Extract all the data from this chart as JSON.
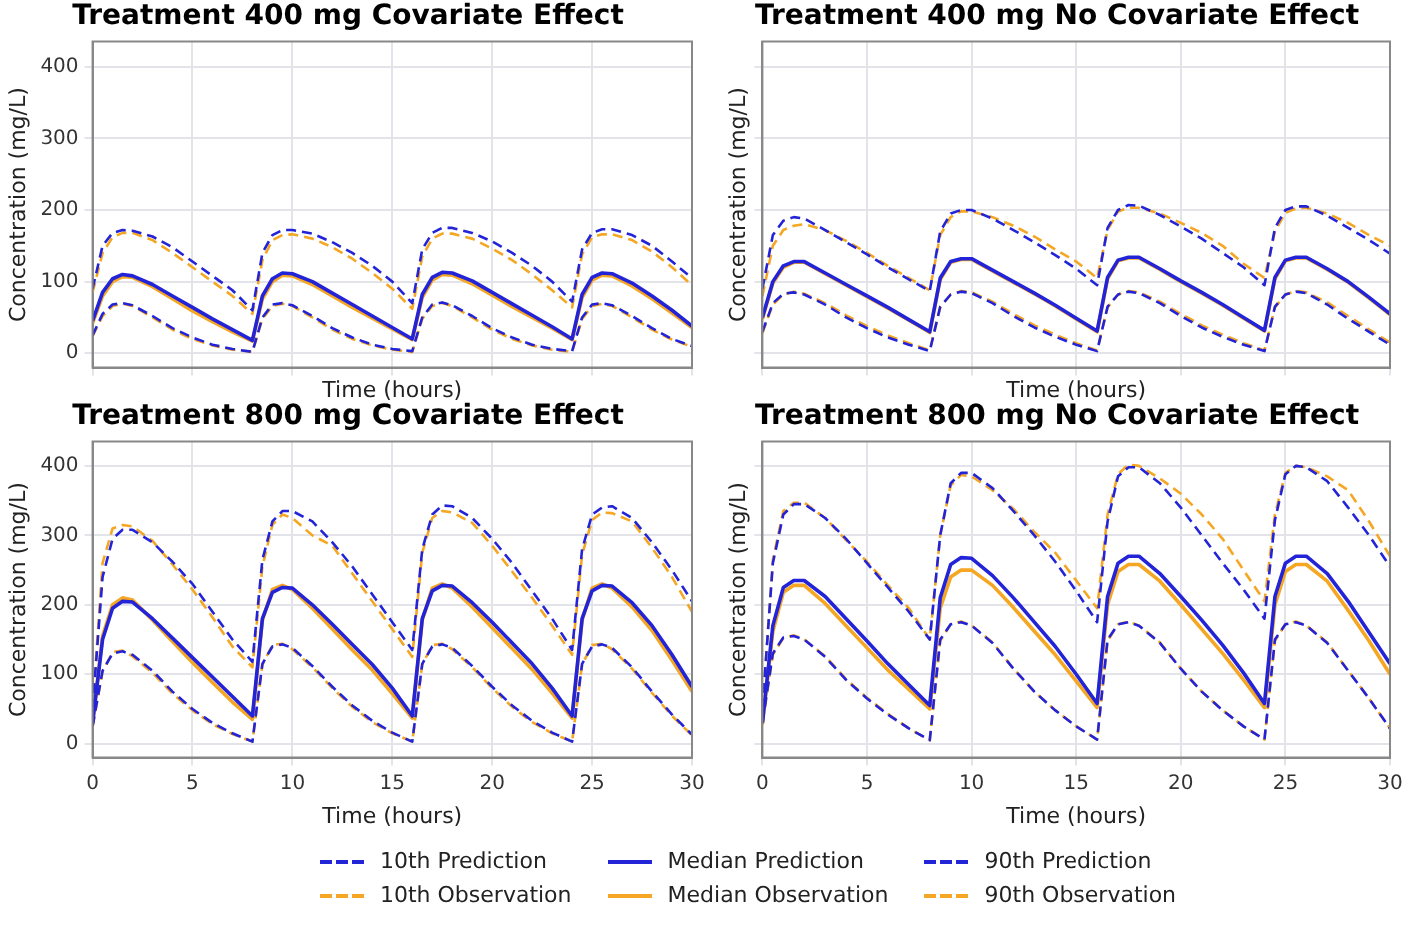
{
  "chart_data": [
    {
      "type": "line",
      "title": "Treatment 400 mg Covariate Effect",
      "xlabel": "Time (hours)",
      "ylabel": "Concentration (mg/L)",
      "xlim": [
        0,
        30
      ],
      "xticks": [
        0,
        5,
        10,
        15,
        20,
        25,
        30
      ],
      "ylim": [
        -20,
        435
      ],
      "yticks": [
        0,
        100,
        200,
        300,
        400
      ],
      "grid": true,
      "tick_labels": "y",
      "marker": "none",
      "legend": "bottom",
      "x": [
        0,
        0.5,
        1,
        1.5,
        2,
        3,
        4,
        5,
        6,
        7,
        8,
        8.5,
        9,
        9.5,
        10,
        11,
        12,
        13,
        14,
        15,
        16,
        16.5,
        17,
        17.5,
        18,
        19,
        20,
        21,
        22,
        23,
        24,
        24.5,
        25,
        25.5,
        26,
        27,
        28,
        29,
        30
      ],
      "series": [
        {
          "name": "10th Prediction",
          "color": "#2323d8",
          "line_style": "dashed",
          "values": [
            25,
            55,
            68,
            70,
            67,
            52,
            35,
            22,
            12,
            6,
            2,
            50,
            68,
            70,
            67,
            52,
            35,
            22,
            12,
            6,
            3,
            50,
            68,
            71,
            67,
            52,
            35,
            22,
            12,
            6,
            3,
            50,
            68,
            70,
            67,
            52,
            35,
            20,
            10
          ]
        },
        {
          "name": "Median Prediction",
          "color": "#2323d8",
          "line_style": "solid",
          "values": [
            45,
            85,
            104,
            110,
            108,
            96,
            80,
            64,
            48,
            33,
            18,
            80,
            104,
            112,
            111,
            100,
            84,
            68,
            52,
            36,
            20,
            82,
            106,
            113,
            112,
            101,
            85,
            69,
            53,
            37,
            20,
            82,
            106,
            112,
            111,
            98,
            80,
            60,
            38
          ]
        },
        {
          "name": "90th Prediction",
          "color": "#2323d8",
          "line_style": "dashed",
          "values": [
            90,
            150,
            168,
            172,
            171,
            163,
            148,
            128,
            108,
            88,
            60,
            140,
            165,
            172,
            172,
            167,
            155,
            140,
            122,
            100,
            70,
            145,
            168,
            175,
            175,
            168,
            156,
            140,
            122,
            100,
            72,
            145,
            168,
            173,
            173,
            165,
            150,
            128,
            105
          ]
        },
        {
          "name": "10th Observation",
          "color": "#f5a623",
          "line_style": "dashed",
          "values": [
            24,
            52,
            66,
            69,
            66,
            50,
            33,
            20,
            11,
            5,
            2,
            48,
            66,
            69,
            66,
            50,
            33,
            20,
            11,
            5,
            2,
            48,
            66,
            70,
            66,
            50,
            33,
            20,
            11,
            5,
            2,
            48,
            66,
            69,
            66,
            50,
            33,
            19,
            9
          ]
        },
        {
          "name": "Median Observation",
          "color": "#f5a623",
          "line_style": "solid",
          "values": [
            42,
            80,
            100,
            107,
            106,
            93,
            76,
            59,
            44,
            30,
            17,
            76,
            100,
            109,
            108,
            96,
            80,
            64,
            49,
            34,
            19,
            78,
            102,
            110,
            109,
            97,
            81,
            65,
            50,
            35,
            19,
            78,
            102,
            109,
            108,
            94,
            76,
            56,
            36
          ]
        },
        {
          "name": "90th Observation",
          "color": "#f5a623",
          "line_style": "dashed",
          "values": [
            85,
            140,
            162,
            168,
            168,
            158,
            140,
            120,
            100,
            80,
            55,
            130,
            158,
            165,
            166,
            160,
            148,
            132,
            112,
            90,
            62,
            135,
            160,
            167,
            167,
            160,
            146,
            130,
            110,
            88,
            64,
            138,
            162,
            166,
            166,
            158,
            142,
            120,
            95
          ]
        }
      ]
    },
    {
      "type": "line",
      "title": "Treatment 400 mg No Covariate Effect",
      "xlabel": "Time (hours)",
      "ylabel": "Concentration (mg/L)",
      "xlim": [
        0,
        30
      ],
      "xticks": [
        0,
        5,
        10,
        15,
        20,
        25,
        30
      ],
      "ylim": [
        -20,
        435
      ],
      "yticks": [
        0,
        100,
        200,
        300,
        400
      ],
      "grid": true,
      "tick_labels": false,
      "marker": "none",
      "x": [
        0,
        0.5,
        1,
        1.5,
        2,
        3,
        4,
        5,
        6,
        7,
        8,
        8.5,
        9,
        9.5,
        10,
        11,
        12,
        13,
        14,
        15,
        16,
        16.5,
        17,
        17.5,
        18,
        19,
        20,
        21,
        22,
        23,
        24,
        24.5,
        25,
        25.5,
        26,
        27,
        28,
        29,
        30
      ],
      "series": [
        {
          "name": "10th Prediction",
          "color": "#2323d8",
          "line_style": "dashed",
          "values": [
            30,
            70,
            83,
            85,
            82,
            68,
            50,
            35,
            22,
            12,
            3,
            65,
            82,
            86,
            84,
            70,
            52,
            36,
            23,
            12,
            3,
            65,
            82,
            86,
            84,
            70,
            52,
            36,
            23,
            12,
            3,
            65,
            82,
            86,
            84,
            68,
            48,
            30,
            12
          ]
        },
        {
          "name": "Median Prediction",
          "color": "#2323d8",
          "line_style": "solid",
          "values": [
            50,
            100,
            122,
            128,
            128,
            112,
            96,
            80,
            64,
            47,
            30,
            105,
            128,
            132,
            132,
            116,
            100,
            84,
            67,
            49,
            31,
            106,
            130,
            134,
            134,
            118,
            101,
            85,
            68,
            50,
            32,
            106,
            130,
            134,
            134,
            118,
            100,
            78,
            55
          ]
        },
        {
          "name": "90th Prediction",
          "color": "#2323d8",
          "line_style": "dashed",
          "values": [
            90,
            165,
            185,
            190,
            188,
            172,
            155,
            138,
            120,
            103,
            87,
            170,
            195,
            200,
            200,
            188,
            172,
            155,
            137,
            118,
            95,
            175,
            200,
            207,
            206,
            193,
            177,
            160,
            140,
            120,
            95,
            175,
            200,
            205,
            205,
            192,
            175,
            158,
            139
          ]
        },
        {
          "name": "10th Observation",
          "color": "#f5a623",
          "line_style": "dashed",
          "values": [
            28,
            68,
            82,
            86,
            83,
            70,
            53,
            38,
            25,
            14,
            4,
            64,
            82,
            87,
            85,
            72,
            55,
            39,
            26,
            14,
            4,
            64,
            82,
            87,
            85,
            72,
            55,
            39,
            26,
            14,
            4,
            64,
            82,
            87,
            85,
            71,
            52,
            33,
            15
          ]
        },
        {
          "name": "Median Observation",
          "color": "#f5a623",
          "line_style": "solid",
          "values": [
            48,
            98,
            120,
            127,
            127,
            111,
            95,
            79,
            63,
            46,
            29,
            103,
            127,
            131,
            131,
            115,
            99,
            83,
            66,
            48,
            30,
            104,
            129,
            133,
            133,
            117,
            100,
            84,
            67,
            49,
            31,
            104,
            129,
            133,
            133,
            117,
            99,
            77,
            54
          ]
        },
        {
          "name": "90th Observation",
          "color": "#f5a623",
          "line_style": "dashed",
          "values": [
            80,
            150,
            172,
            178,
            180,
            172,
            157,
            140,
            122,
            105,
            88,
            165,
            190,
            198,
            198,
            190,
            178,
            163,
            145,
            128,
            105,
            172,
            198,
            203,
            203,
            195,
            182,
            168,
            150,
            125,
            105,
            170,
            196,
            202,
            203,
            195,
            182,
            165,
            150
          ]
        }
      ]
    },
    {
      "type": "line",
      "title": "Treatment 800 mg Covariate Effect",
      "xlabel": "Time (hours)",
      "ylabel": "Concentration (mg/L)",
      "xlim": [
        0,
        30
      ],
      "xticks": [
        0,
        5,
        10,
        15,
        20,
        25,
        30
      ],
      "ylim": [
        -20,
        435
      ],
      "yticks": [
        0,
        100,
        200,
        300,
        400
      ],
      "grid": true,
      "marker": "none",
      "x": [
        0,
        0.5,
        1,
        1.5,
        2,
        3,
        4,
        5,
        6,
        7,
        8,
        8.5,
        9,
        9.5,
        10,
        11,
        12,
        13,
        14,
        15,
        16,
        16.5,
        17,
        17.5,
        18,
        19,
        20,
        21,
        22,
        23,
        24,
        24.5,
        25,
        25.5,
        26,
        27,
        28,
        29,
        30
      ],
      "series": [
        {
          "name": "10th Prediction",
          "color": "#2323d8",
          "line_style": "dashed",
          "values": [
            25,
            105,
            130,
            133,
            128,
            105,
            75,
            50,
            30,
            15,
            3,
            115,
            140,
            143,
            138,
            112,
            82,
            55,
            33,
            16,
            3,
            115,
            140,
            143,
            138,
            112,
            82,
            55,
            33,
            16,
            3,
            115,
            140,
            143,
            138,
            110,
            75,
            42,
            13
          ]
        },
        {
          "name": "Median Prediction",
          "color": "#2323d8",
          "line_style": "solid",
          "values": [
            30,
            150,
            195,
            205,
            204,
            180,
            152,
            124,
            96,
            68,
            40,
            180,
            218,
            225,
            224,
            200,
            172,
            143,
            114,
            80,
            40,
            180,
            220,
            228,
            227,
            203,
            175,
            145,
            115,
            80,
            40,
            180,
            220,
            228,
            227,
            203,
            170,
            128,
            82
          ]
        },
        {
          "name": "90th Prediction",
          "color": "#2323d8",
          "line_style": "dashed",
          "values": [
            50,
            240,
            295,
            308,
            308,
            290,
            262,
            230,
            190,
            150,
            118,
            265,
            320,
            335,
            335,
            320,
            290,
            255,
            215,
            175,
            135,
            280,
            330,
            343,
            342,
            325,
            295,
            260,
            220,
            180,
            135,
            280,
            330,
            340,
            342,
            325,
            290,
            250,
            205
          ]
        },
        {
          "name": "10th Observation",
          "color": "#f5a623",
          "line_style": "dashed",
          "values": [
            24,
            104,
            132,
            134,
            126,
            102,
            72,
            48,
            28,
            14,
            3,
            114,
            142,
            144,
            136,
            110,
            80,
            53,
            31,
            15,
            3,
            114,
            142,
            144,
            136,
            110,
            80,
            53,
            31,
            15,
            3,
            114,
            142,
            144,
            136,
            108,
            73,
            40,
            12
          ]
        },
        {
          "name": "Median Observation",
          "color": "#f5a623",
          "line_style": "solid",
          "values": [
            28,
            155,
            200,
            210,
            207,
            178,
            147,
            117,
            88,
            60,
            35,
            178,
            222,
            228,
            222,
            195,
            165,
            135,
            106,
            72,
            37,
            178,
            224,
            230,
            224,
            197,
            167,
            137,
            107,
            73,
            37,
            178,
            224,
            230,
            224,
            197,
            163,
            120,
            75
          ]
        },
        {
          "name": "90th Observation",
          "color": "#f5a623",
          "line_style": "dashed",
          "values": [
            50,
            260,
            310,
            315,
            313,
            292,
            258,
            222,
            182,
            140,
            110,
            255,
            315,
            330,
            325,
            300,
            285,
            245,
            205,
            165,
            125,
            275,
            325,
            335,
            333,
            318,
            285,
            248,
            210,
            170,
            128,
            272,
            322,
            333,
            332,
            320,
            282,
            240,
            190
          ]
        }
      ]
    },
    {
      "type": "line",
      "title": "Treatment 800 mg No Covariate Effect",
      "xlabel": "Time (hours)",
      "ylabel": "Concentration (mg/L)",
      "xlim": [
        0,
        30
      ],
      "xticks": [
        0,
        5,
        10,
        15,
        20,
        25,
        30
      ],
      "ylim": [
        -20,
        435
      ],
      "yticks": [
        0,
        100,
        200,
        300,
        400
      ],
      "grid": true,
      "tick_labels": "x",
      "marker": "none",
      "x": [
        0,
        0.5,
        1,
        1.5,
        2,
        3,
        4,
        5,
        6,
        7,
        8,
        8.5,
        9,
        9.5,
        10,
        11,
        12,
        13,
        14,
        15,
        16,
        16.5,
        17,
        17.5,
        18,
        19,
        20,
        21,
        22,
        23,
        24,
        24.5,
        25,
        25.5,
        26,
        27,
        28,
        29,
        30
      ],
      "series": [
        {
          "name": "10th Prediction",
          "color": "#2323d8",
          "line_style": "dashed",
          "values": [
            30,
            130,
            153,
            155,
            150,
            125,
            92,
            65,
            42,
            22,
            5,
            150,
            172,
            175,
            170,
            145,
            108,
            75,
            48,
            25,
            6,
            150,
            172,
            175,
            170,
            145,
            108,
            75,
            48,
            25,
            6,
            150,
            172,
            175,
            170,
            145,
            105,
            65,
            22
          ]
        },
        {
          "name": "Median Prediction",
          "color": "#2323d8",
          "line_style": "solid",
          "values": [
            30,
            170,
            225,
            235,
            235,
            212,
            180,
            148,
            115,
            85,
            55,
            210,
            258,
            268,
            267,
            242,
            210,
            175,
            140,
            100,
            58,
            212,
            260,
            270,
            270,
            245,
            212,
            178,
            142,
            102,
            58,
            212,
            260,
            270,
            270,
            245,
            205,
            160,
            115
          ]
        },
        {
          "name": "90th Prediction",
          "color": "#2323d8",
          "line_style": "dashed",
          "values": [
            50,
            260,
            330,
            345,
            345,
            325,
            295,
            260,
            225,
            190,
            150,
            300,
            375,
            390,
            390,
            368,
            335,
            300,
            262,
            220,
            175,
            320,
            385,
            398,
            398,
            375,
            340,
            300,
            260,
            222,
            180,
            322,
            388,
            400,
            398,
            378,
            340,
            300,
            255
          ]
        },
        {
          "name": "10th Observation",
          "color": "#f5a623",
          "line_style": "dashed",
          "values": [
            28,
            128,
            152,
            156,
            150,
            126,
            93,
            66,
            43,
            22,
            5,
            148,
            172,
            176,
            170,
            146,
            108,
            75,
            48,
            25,
            6,
            148,
            172,
            176,
            170,
            146,
            108,
            75,
            48,
            25,
            6,
            148,
            172,
            176,
            170,
            146,
            105,
            65,
            22
          ]
        },
        {
          "name": "Median Observation",
          "color": "#f5a623",
          "line_style": "solid",
          "values": [
            28,
            162,
            218,
            228,
            228,
            202,
            170,
            138,
            106,
            78,
            50,
            195,
            240,
            250,
            250,
            228,
            196,
            162,
            128,
            90,
            52,
            200,
            248,
            258,
            258,
            234,
            200,
            165,
            130,
            92,
            52,
            200,
            248,
            258,
            258,
            234,
            192,
            148,
            100
          ]
        },
        {
          "name": "90th Observation",
          "color": "#f5a623",
          "line_style": "dashed",
          "values": [
            50,
            265,
            335,
            347,
            347,
            325,
            293,
            262,
            228,
            195,
            150,
            300,
            372,
            387,
            385,
            365,
            338,
            305,
            275,
            235,
            195,
            330,
            388,
            402,
            400,
            382,
            360,
            330,
            295,
            250,
            205,
            330,
            390,
            400,
            398,
            385,
            365,
            320,
            270
          ]
        }
      ]
    }
  ]
}
